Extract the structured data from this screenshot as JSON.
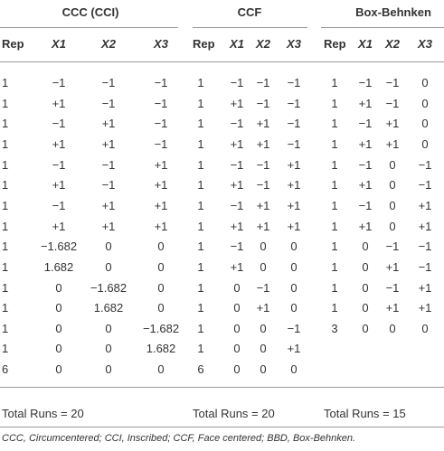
{
  "groups": [
    {
      "title": "CCC (CCI)",
      "headers": [
        "Rep",
        "X1",
        "X2",
        "X3"
      ],
      "rows": [
        [
          "1",
          "−1",
          "−1",
          "−1"
        ],
        [
          "1",
          "+1",
          "−1",
          "−1"
        ],
        [
          "1",
          "−1",
          "+1",
          "−1"
        ],
        [
          "1",
          "+1",
          "+1",
          "−1"
        ],
        [
          "1",
          "−1",
          "−1",
          "+1"
        ],
        [
          "1",
          "+1",
          "−1",
          "+1"
        ],
        [
          "1",
          "−1",
          "+1",
          "+1"
        ],
        [
          "1",
          "+1",
          "+1",
          "+1"
        ],
        [
          "1",
          "−1.682",
          "0",
          "0"
        ],
        [
          "1",
          "1.682",
          "0",
          "0"
        ],
        [
          "1",
          "0",
          "−1.682",
          "0"
        ],
        [
          "1",
          "0",
          "1.682",
          "0"
        ],
        [
          "1",
          "0",
          "0",
          "−1.682"
        ],
        [
          "1",
          "0",
          "0",
          "1.682"
        ],
        [
          "6",
          "0",
          "0",
          "0"
        ]
      ],
      "total": "Total Runs = 20"
    },
    {
      "title": "CCF",
      "headers": [
        "Rep",
        "X1",
        "X2",
        "X3"
      ],
      "rows": [
        [
          "1",
          "−1",
          "−1",
          "−1"
        ],
        [
          "1",
          "+1",
          "−1",
          "−1"
        ],
        [
          "1",
          "−1",
          "+1",
          "−1"
        ],
        [
          "1",
          "+1",
          "+1",
          "−1"
        ],
        [
          "1",
          "−1",
          "−1",
          "+1"
        ],
        [
          "1",
          "+1",
          "−1",
          "+1"
        ],
        [
          "1",
          "−1",
          "+1",
          "+1"
        ],
        [
          "1",
          "+1",
          "+1",
          "+1"
        ],
        [
          "1",
          "−1",
          "0",
          "0"
        ],
        [
          "1",
          "+1",
          "0",
          "0"
        ],
        [
          "1",
          "0",
          "−1",
          "0"
        ],
        [
          "1",
          "0",
          "+1",
          "0"
        ],
        [
          "1",
          "0",
          "0",
          "−1"
        ],
        [
          "1",
          "0",
          "0",
          "+1"
        ],
        [
          "6",
          "0",
          "0",
          "0"
        ]
      ],
      "total": "Total Runs = 20"
    },
    {
      "title": "Box-Behnken",
      "headers": [
        "Rep",
        "X1",
        "X2",
        "X3"
      ],
      "rows": [
        [
          "1",
          "−1",
          "−1",
          "0"
        ],
        [
          "1",
          "+1",
          "−1",
          "0"
        ],
        [
          "1",
          "−1",
          "+1",
          "0"
        ],
        [
          "1",
          "+1",
          "+1",
          "0"
        ],
        [
          "1",
          "−1",
          "0",
          "−1"
        ],
        [
          "1",
          "+1",
          "0",
          "−1"
        ],
        [
          "1",
          "−1",
          "0",
          "+1"
        ],
        [
          "1",
          "+1",
          "0",
          "+1"
        ],
        [
          "1",
          "0",
          "−1",
          "−1"
        ],
        [
          "1",
          "0",
          "+1",
          "−1"
        ],
        [
          "1",
          "0",
          "−1",
          "+1"
        ],
        [
          "1",
          "0",
          "+1",
          "+1"
        ],
        [
          "3",
          "0",
          "0",
          "0"
        ]
      ],
      "total": "Total Runs = 15"
    }
  ],
  "footnote": "CCC, Circumcentered; CCI, Inscribed; CCF, Face centered; BBD, Box-Behnken."
}
